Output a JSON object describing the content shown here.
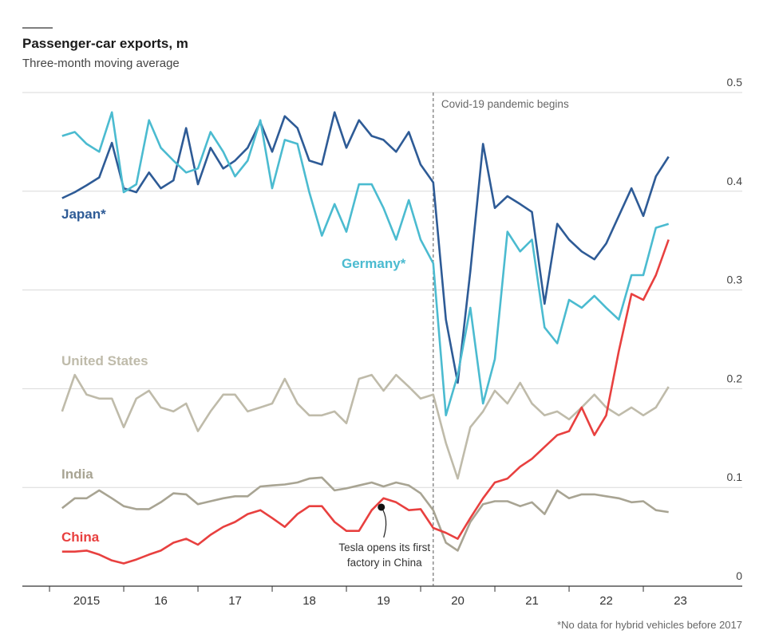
{
  "chart_data": {
    "type": "line",
    "title": "Passenger-car exports, m",
    "subtitle": "Three-month moving average",
    "footnote": "*No data for hybrid vehicles before 2017",
    "x": [
      2015.17,
      2015.34,
      2015.5,
      2015.67,
      2015.84,
      2016.0,
      2016.17,
      2016.34,
      2016.5,
      2016.67,
      2016.84,
      2017.0,
      2017.17,
      2017.34,
      2017.5,
      2017.67,
      2017.84,
      2018.0,
      2018.17,
      2018.34,
      2018.5,
      2018.67,
      2018.84,
      2019.0,
      2019.17,
      2019.34,
      2019.5,
      2019.67,
      2019.84,
      2020.0,
      2020.17,
      2020.34,
      2020.5,
      2020.67,
      2020.84,
      2021.0,
      2021.17,
      2021.34,
      2021.5,
      2021.67,
      2021.84,
      2022.0,
      2022.17,
      2022.34,
      2022.5,
      2022.67,
      2022.84,
      2023.0,
      2023.17,
      2023.34
    ],
    "series": [
      {
        "name": "Japan*",
        "color": "#2e5b96",
        "values": [
          0.393,
          0.399,
          0.406,
          0.414,
          0.449,
          0.403,
          0.399,
          0.419,
          0.403,
          0.411,
          0.464,
          0.407,
          0.444,
          0.423,
          0.431,
          0.444,
          0.47,
          0.44,
          0.476,
          0.464,
          0.431,
          0.427,
          0.48,
          0.444,
          0.472,
          0.456,
          0.452,
          0.44,
          0.46,
          0.427,
          0.409,
          0.27,
          0.206,
          0.319,
          0.448,
          0.383,
          0.395,
          0.387,
          0.379,
          0.286,
          0.367,
          0.351,
          0.339,
          0.331,
          0.347,
          0.375,
          0.403,
          0.375,
          0.415,
          0.435
        ]
      },
      {
        "name": "Germany*",
        "color": "#4bbbd0",
        "values": [
          0.456,
          0.46,
          0.448,
          0.44,
          0.48,
          0.399,
          0.407,
          0.472,
          0.444,
          0.431,
          0.419,
          0.423,
          0.46,
          0.44,
          0.415,
          0.431,
          0.472,
          0.403,
          0.452,
          0.448,
          0.399,
          0.355,
          0.387,
          0.359,
          0.407,
          0.407,
          0.383,
          0.351,
          0.391,
          0.351,
          0.327,
          0.173,
          0.214,
          0.282,
          0.185,
          0.23,
          0.359,
          0.339,
          0.351,
          0.262,
          0.246,
          0.29,
          0.282,
          0.294,
          0.282,
          0.27,
          0.315,
          0.315,
          0.363,
          0.367
        ]
      },
      {
        "name": "United States",
        "color": "#bfbbaa",
        "values": [
          0.177,
          0.214,
          0.194,
          0.19,
          0.19,
          0.161,
          0.19,
          0.198,
          0.181,
          0.177,
          0.185,
          0.157,
          0.177,
          0.194,
          0.194,
          0.177,
          0.181,
          0.185,
          0.21,
          0.185,
          0.173,
          0.173,
          0.177,
          0.165,
          0.21,
          0.214,
          0.198,
          0.214,
          0.202,
          0.19,
          0.194,
          0.145,
          0.109,
          0.161,
          0.177,
          0.198,
          0.185,
          0.206,
          0.185,
          0.173,
          0.177,
          0.169,
          0.181,
          0.194,
          0.181,
          0.173,
          0.181,
          0.173,
          0.181,
          0.202
        ]
      },
      {
        "name": "India",
        "color": "#a8a493",
        "values": [
          0.079,
          0.089,
          0.089,
          0.097,
          0.089,
          0.081,
          0.078,
          0.078,
          0.085,
          0.094,
          0.093,
          0.083,
          0.086,
          0.089,
          0.091,
          0.091,
          0.101,
          0.102,
          0.103,
          0.105,
          0.109,
          0.11,
          0.097,
          0.099,
          0.102,
          0.105,
          0.101,
          0.105,
          0.102,
          0.094,
          0.077,
          0.044,
          0.036,
          0.065,
          0.083,
          0.086,
          0.086,
          0.081,
          0.085,
          0.073,
          0.097,
          0.089,
          0.093,
          0.093,
          0.091,
          0.089,
          0.085,
          0.086,
          0.077,
          0.075
        ]
      },
      {
        "name": "China",
        "color": "#e8403f",
        "values": [
          0.035,
          0.035,
          0.036,
          0.032,
          0.026,
          0.023,
          0.027,
          0.032,
          0.036,
          0.044,
          0.048,
          0.042,
          0.052,
          0.06,
          0.065,
          0.073,
          0.077,
          0.069,
          0.06,
          0.073,
          0.081,
          0.081,
          0.065,
          0.056,
          0.056,
          0.077,
          0.089,
          0.085,
          0.077,
          0.078,
          0.059,
          0.054,
          0.048,
          0.069,
          0.089,
          0.105,
          0.109,
          0.121,
          0.129,
          0.141,
          0.153,
          0.157,
          0.181,
          0.153,
          0.173,
          0.238,
          0.296,
          0.29,
          0.315,
          0.351
        ]
      }
    ],
    "xlim": [
      2014.634,
      2024.333
    ],
    "xticks": [
      {
        "value": 2015,
        "label": "2015"
      },
      {
        "value": 2016,
        "label": "16"
      },
      {
        "value": 2017,
        "label": "17"
      },
      {
        "value": 2018,
        "label": "18"
      },
      {
        "value": 2019,
        "label": "19"
      },
      {
        "value": 2020,
        "label": "20"
      },
      {
        "value": 2021,
        "label": "21"
      },
      {
        "value": 2022,
        "label": "22"
      },
      {
        "value": 2023,
        "label": "23"
      }
    ],
    "ylim": [
      0,
      0.5
    ],
    "yticks": [
      0,
      0.1,
      0.2,
      0.3,
      0.4,
      0.5
    ],
    "grid": true,
    "annotations": [
      {
        "x": 2020.17,
        "label": "Covid-19 pandemic begins"
      },
      {
        "x": 2019.47,
        "y": 0.08,
        "label": [
          "Tesla opens its first",
          "factory in China"
        ]
      }
    ]
  }
}
